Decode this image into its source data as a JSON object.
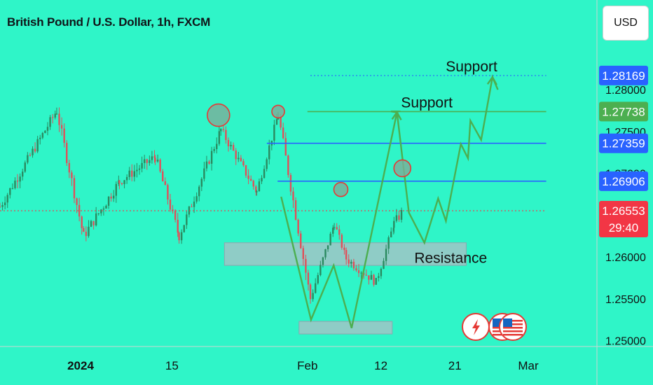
{
  "header": {
    "title": "British Pound / U.S. Dollar, 1h, FXCM",
    "currency_label": "USD"
  },
  "colors": {
    "background": "#2ff5c8",
    "up_candle": "#2a8a5f",
    "down_candle": "#e0505a",
    "support_green": "#4caf50",
    "resistance_blue": "#2962ff",
    "current_price": "#f23645",
    "zone_fill": "#b0bec5",
    "marker_fill": "#7cae9a",
    "marker_stroke": "#e53935"
  },
  "chart_data": {
    "type": "candlestick",
    "title": "British Pound / U.S. Dollar, 1h, FXCM",
    "x_ticks": [
      "2024",
      "15",
      "Feb",
      "12",
      "21",
      "Mar"
    ],
    "y_ticks": [
      1.25,
      1.255,
      1.26,
      1.265,
      1.27,
      1.275,
      1.28
    ],
    "y_tick_labels": [
      "1.25000",
      "1.25500",
      "1.26000",
      "1.26500",
      "1.27000",
      "1.27500",
      "1.28000"
    ],
    "ylim": [
      1.2493,
      1.2857
    ],
    "grid": false,
    "price_tags": [
      {
        "label": "1.28169",
        "value": 1.28169,
        "color": "#2962ff"
      },
      {
        "label": "1.27738",
        "value": 1.27738,
        "color": "#4caf50"
      },
      {
        "label": "1.27359",
        "value": 1.27359,
        "color": "#2962ff"
      },
      {
        "label": "1.26906",
        "value": 1.26906,
        "color": "#2962ff"
      },
      {
        "label": "1.26553",
        "value": 1.26553,
        "color": "#f23645",
        "countdown": "29:40"
      }
    ],
    "annotations": [
      {
        "text": "Support",
        "value": 1.28169
      },
      {
        "text": "Support",
        "value": 1.27738
      },
      {
        "text": "Resistance",
        "value": 1.2598
      }
    ],
    "horizontal_lines": [
      {
        "value": 1.28169,
        "style": "dotted",
        "color": "#2962ff",
        "x_from": 0.52,
        "x_to": 0.915
      },
      {
        "value": 1.27738,
        "style": "solid",
        "color": "#4caf50",
        "x_from": 0.515,
        "x_to": 0.915
      },
      {
        "value": 1.27359,
        "style": "solid",
        "color": "#2962ff",
        "x_from": 0.447,
        "x_to": 0.915
      },
      {
        "value": 1.26906,
        "style": "solid",
        "color": "#2962ff",
        "x_from": 0.465,
        "x_to": 0.915
      },
      {
        "value": 1.26553,
        "style": "dotted",
        "color": "#f23645",
        "x_from": 0.0,
        "x_to": 0.915
      }
    ],
    "zones": [
      {
        "y_top": 1.2617,
        "y_bottom": 1.259,
        "x_from": 0.376,
        "x_to": 0.781
      },
      {
        "y_top": 1.2523,
        "y_bottom": 1.2508,
        "x_from": 0.501,
        "x_to": 0.657
      }
    ],
    "projection_path": [
      [
        0.471,
        1.2672
      ],
      [
        0.521,
        1.2525
      ],
      [
        0.559,
        1.259
      ],
      [
        0.589,
        1.2515
      ],
      [
        0.665,
        1.2773
      ],
      [
        0.655,
        1.2774
      ],
      [
        0.667,
        1.2774
      ],
      [
        0.665,
        1.2773
      ],
      [
        0.685,
        1.2653
      ],
      [
        0.711,
        1.2617
      ],
      [
        0.734,
        1.267
      ],
      [
        0.747,
        1.2643
      ],
      [
        0.772,
        1.2735
      ],
      [
        0.784,
        1.2718
      ],
      [
        0.788,
        1.2763
      ],
      [
        0.806,
        1.274
      ],
      [
        0.825,
        1.2815
      ],
      [
        0.834,
        1.28
      ]
    ],
    "markers": [
      {
        "x": 0.366,
        "value": 1.27695,
        "r": 16
      },
      {
        "x": 0.466,
        "value": 1.27738,
        "r": 9
      },
      {
        "x": 0.571,
        "value": 1.26807,
        "r": 10
      },
      {
        "x": 0.674,
        "value": 1.2706,
        "r": 12
      }
    ],
    "event_icons": [
      "lightning-icon",
      "us-flag-icon",
      "us-flag-icon"
    ],
    "candle_seed": {
      "segments": [
        {
          "from": 0.0,
          "to": 0.095,
          "start": 1.266,
          "end": 1.2775,
          "vol": 0.0012
        },
        {
          "from": 0.095,
          "to": 0.14,
          "start": 1.2775,
          "end": 1.2625,
          "vol": 0.0014
        },
        {
          "from": 0.14,
          "to": 0.2,
          "start": 1.2625,
          "end": 1.269,
          "vol": 0.0013
        },
        {
          "from": 0.2,
          "to": 0.26,
          "start": 1.269,
          "end": 1.272,
          "vol": 0.0012
        },
        {
          "from": 0.26,
          "to": 0.3,
          "start": 1.272,
          "end": 1.2625,
          "vol": 0.0013
        },
        {
          "from": 0.3,
          "to": 0.37,
          "start": 1.2625,
          "end": 1.2752,
          "vol": 0.0012
        },
        {
          "from": 0.37,
          "to": 0.43,
          "start": 1.2752,
          "end": 1.2678,
          "vol": 0.0011
        },
        {
          "from": 0.43,
          "to": 0.466,
          "start": 1.2678,
          "end": 1.277,
          "vol": 0.001
        },
        {
          "from": 0.466,
          "to": 0.52,
          "start": 1.277,
          "end": 1.255,
          "vol": 0.0014
        },
        {
          "from": 0.52,
          "to": 0.56,
          "start": 1.255,
          "end": 1.264,
          "vol": 0.001
        },
        {
          "from": 0.56,
          "to": 0.58,
          "start": 1.264,
          "end": 1.2598,
          "vol": 0.0009
        },
        {
          "from": 0.58,
          "to": 0.63,
          "start": 1.2598,
          "end": 1.257,
          "vol": 0.0011
        },
        {
          "from": 0.63,
          "to": 0.66,
          "start": 1.257,
          "end": 1.264,
          "vol": 0.001
        },
        {
          "from": 0.66,
          "to": 0.675,
          "start": 1.264,
          "end": 1.2655,
          "vol": 0.0012
        }
      ]
    }
  }
}
